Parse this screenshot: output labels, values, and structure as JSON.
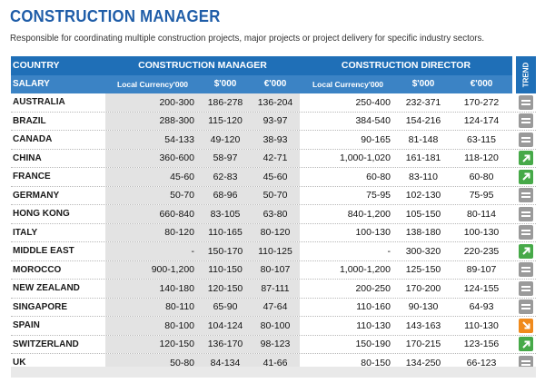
{
  "title": "CONSTRUCTION MANAGER",
  "subtitle": "Responsible for coordinating multiple construction projects, major projects or project delivery for specific industry sectors.",
  "header": {
    "country": "COUNTRY",
    "salary": "SALARY",
    "cm_group": "CONSTRUCTION MANAGER",
    "cd_group": "CONSTRUCTION DIRECTOR",
    "local": "Local Currency'000",
    "usd": "$'000",
    "eur": "€'000",
    "trend": "TREND"
  },
  "colors": {
    "header_dark": "#1f6fb7",
    "header_light": "#3b83c5",
    "shade": "#e3e3e3",
    "trend_up": "#46a948",
    "trend_same": "#9a9a9a",
    "trend_down": "#f08a1c"
  },
  "rows": [
    {
      "country": "AUSTRALIA",
      "local": "200-300",
      "usd": "186-278",
      "eur": "136-204",
      "d_local": "250-400",
      "d_usd": "232-371",
      "d_eur": "170-272",
      "trend": "same"
    },
    {
      "country": "BRAZIL",
      "local": "288-300",
      "usd": "115-120",
      "eur": "93-97",
      "d_local": "384-540",
      "d_usd": "154-216",
      "d_eur": "124-174",
      "trend": "same"
    },
    {
      "country": "CANADA",
      "local": "54-133",
      "usd": "49-120",
      "eur": "38-93",
      "d_local": "90-165",
      "d_usd": "81-148",
      "d_eur": "63-115",
      "trend": "same"
    },
    {
      "country": "CHINA",
      "local": "360-600",
      "usd": "58-97",
      "eur": "42-71",
      "d_local": "1,000-1,020",
      "d_usd": "161-181",
      "d_eur": "118-120",
      "trend": "up"
    },
    {
      "country": "FRANCE",
      "local": "45-60",
      "usd": "62-83",
      "eur": "45-60",
      "d_local": "60-80",
      "d_usd": "83-110",
      "d_eur": "60-80",
      "trend": "up"
    },
    {
      "country": "GERMANY",
      "local": "50-70",
      "usd": "68-96",
      "eur": "50-70",
      "d_local": "75-95",
      "d_usd": "102-130",
      "d_eur": "75-95",
      "trend": "same"
    },
    {
      "country": "HONG KONG",
      "local": "660-840",
      "usd": "83-105",
      "eur": "63-80",
      "d_local": "840-1,200",
      "d_usd": "105-150",
      "d_eur": "80-114",
      "trend": "same"
    },
    {
      "country": "ITALY",
      "local": "80-120",
      "usd": "110-165",
      "eur": "80-120",
      "d_local": "100-130",
      "d_usd": "138-180",
      "d_eur": "100-130",
      "trend": "same"
    },
    {
      "country": "MIDDLE EAST",
      "local": "-",
      "usd": "150-170",
      "eur": "110-125",
      "d_local": "-",
      "d_usd": "300-320",
      "d_eur": "220-235",
      "trend": "up"
    },
    {
      "country": "MOROCCO",
      "local": "900-1,200",
      "usd": "110-150",
      "eur": "80-107",
      "d_local": "1,000-1,200",
      "d_usd": "125-150",
      "d_eur": "89-107",
      "trend": "same"
    },
    {
      "country": "NEW ZEALAND",
      "local": "140-180",
      "usd": "120-150",
      "eur": "87-111",
      "d_local": "200-250",
      "d_usd": "170-200",
      "d_eur": "124-155",
      "trend": "same"
    },
    {
      "country": "SINGAPORE",
      "local": "80-110",
      "usd": "65-90",
      "eur": "47-64",
      "d_local": "110-160",
      "d_usd": "90-130",
      "d_eur": "64-93",
      "trend": "same"
    },
    {
      "country": "SPAIN",
      "local": "80-100",
      "usd": "104-124",
      "eur": "80-100",
      "d_local": "110-130",
      "d_usd": "143-163",
      "d_eur": "110-130",
      "trend": "down"
    },
    {
      "country": "SWITZERLAND",
      "local": "120-150",
      "usd": "136-170",
      "eur": "98-123",
      "d_local": "150-190",
      "d_usd": "170-215",
      "d_eur": "123-156",
      "trend": "up"
    },
    {
      "country": "UK",
      "local": "50-80",
      "usd": "84-134",
      "eur": "41-66",
      "d_local": "80-150",
      "d_usd": "134-250",
      "d_eur": "66-123",
      "trend": "same"
    }
  ]
}
